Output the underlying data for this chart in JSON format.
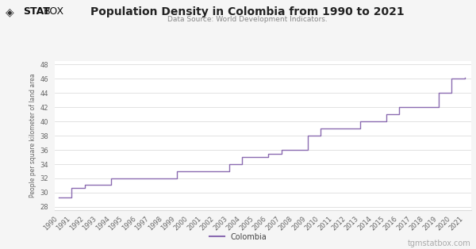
{
  "title": "Population Density in Colombia from 1990 to 2021",
  "subtitle": "Data Source: World Development Indicators.",
  "ylabel": "People per square kilometer of land area",
  "legend_label": "Colombia",
  "watermark": "tgmstatbox.com",
  "logo_text": "STATBOX",
  "years": [
    1990,
    1991,
    1992,
    1993,
    1994,
    1995,
    1996,
    1997,
    1998,
    1999,
    2000,
    2001,
    2002,
    2003,
    2004,
    2005,
    2006,
    2007,
    2008,
    2009,
    2010,
    2011,
    2012,
    2013,
    2014,
    2015,
    2016,
    2017,
    2018,
    2019,
    2020,
    2021
  ],
  "values": [
    29.3,
    30.7,
    31.1,
    31.1,
    32.0,
    32.0,
    32.0,
    32.0,
    32.0,
    33.0,
    33.0,
    33.0,
    33.0,
    34.0,
    35.0,
    35.0,
    35.5,
    36.0,
    36.0,
    38.0,
    39.0,
    39.0,
    39.0,
    40.0,
    40.0,
    41.0,
    42.0,
    42.0,
    42.0,
    44.0,
    46.0,
    46.2
  ],
  "line_color": "#8B6BB1",
  "bg_color": "#f5f5f5",
  "plot_bg_color": "#ffffff",
  "grid_color": "#dddddd",
  "ylim": [
    27.5,
    48.5
  ],
  "yticks": [
    28,
    30,
    32,
    34,
    36,
    38,
    40,
    42,
    44,
    46,
    48
  ],
  "title_fontsize": 10,
  "subtitle_fontsize": 6.5,
  "ylabel_fontsize": 5.5,
  "tick_fontsize": 6,
  "legend_fontsize": 7,
  "watermark_fontsize": 7
}
